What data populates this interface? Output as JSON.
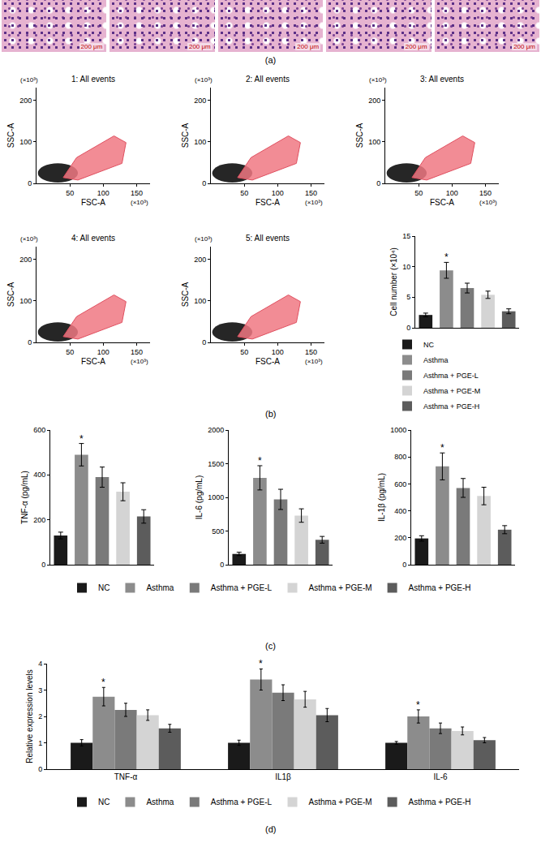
{
  "panel_a": {
    "label": "(a)",
    "scale_bars": [
      "200 μm",
      "200 μm",
      "200 μm",
      "200 μm",
      "200 μm"
    ]
  },
  "chart_data": [
    {
      "type": "scatter",
      "panel": "(b)",
      "title": "1: All events",
      "xlabel": "FSC-A",
      "ylabel": "SSC-A",
      "x_multiplier": "(×10³)",
      "y_multiplier": "(×10³)",
      "xlim": [
        0,
        170
      ],
      "xticks": [
        50,
        100,
        150
      ],
      "ylim": [
        0,
        230
      ],
      "yticks": [
        0,
        100,
        200
      ],
      "grid": false
    },
    {
      "type": "scatter",
      "panel": "(b)",
      "title": "2: All events",
      "xlabel": "FSC-A",
      "ylabel": "SSC-A",
      "x_multiplier": "(×10³)",
      "y_multiplier": "(×10³)",
      "xlim": [
        0,
        170
      ],
      "xticks": [
        50,
        100,
        150
      ],
      "ylim": [
        0,
        230
      ],
      "yticks": [
        0,
        100,
        200
      ],
      "grid": false
    },
    {
      "type": "scatter",
      "panel": "(b)",
      "title": "3: All events",
      "xlabel": "FSC-A",
      "ylabel": "SSC-A",
      "x_multiplier": "(×10³)",
      "y_multiplier": "(×10³)",
      "xlim": [
        0,
        170
      ],
      "xticks": [
        50,
        100,
        150
      ],
      "ylim": [
        0,
        230
      ],
      "yticks": [
        0,
        100,
        200
      ],
      "grid": false
    },
    {
      "type": "scatter",
      "panel": "(b)",
      "title": "4: All events",
      "xlabel": "FSC-A",
      "ylabel": "SSC-A",
      "x_multiplier": "(×10³)",
      "y_multiplier": "(×10³)",
      "xlim": [
        0,
        170
      ],
      "xticks": [
        50,
        100,
        150
      ],
      "ylim": [
        0,
        230
      ],
      "yticks": [
        0,
        100,
        200
      ],
      "grid": false
    },
    {
      "type": "scatter",
      "panel": "(b)",
      "title": "5: All events",
      "xlabel": "FSC-A",
      "ylabel": "SSC-A",
      "x_multiplier": "(×10³)",
      "y_multiplier": "(×10³)",
      "xlim": [
        0,
        170
      ],
      "xticks": [
        50,
        100,
        150
      ],
      "ylim": [
        0,
        230
      ],
      "yticks": [
        0,
        100,
        200
      ],
      "grid": false
    },
    {
      "type": "bar",
      "panel": "(b)",
      "ylabel": "Cell number (×10⁴)",
      "categories": [
        "NC",
        "Asthma",
        "Asthma + PGE-L",
        "Asthma + PGE-M",
        "Asthma + PGE-H"
      ],
      "values": [
        2.1,
        9.4,
        6.5,
        5.4,
        2.7
      ],
      "errors": [
        0.3,
        1.3,
        0.8,
        0.6,
        0.4
      ],
      "colors": [
        "#1a1a1a",
        "#8c8c8c",
        "#7a7a7a",
        "#d4d4d4",
        "#5c5c5c"
      ],
      "significance": [
        null,
        "*",
        null,
        null,
        null
      ],
      "ylim": [
        0,
        15
      ],
      "yticks": [
        0,
        5,
        10,
        15
      ],
      "grid": false,
      "tick_labels": "y",
      "legend": "bottom"
    },
    {
      "type": "bar",
      "panel": "(c)",
      "ylabel": "TNF-α (pg/mL)",
      "categories": [
        "NC",
        "Asthma",
        "Asthma + PGE-L",
        "Asthma + PGE-M",
        "Asthma + PGE-H"
      ],
      "values": [
        130,
        490,
        390,
        325,
        215
      ],
      "errors": [
        15,
        50,
        45,
        40,
        30
      ],
      "colors": [
        "#1a1a1a",
        "#8c8c8c",
        "#7a7a7a",
        "#d4d4d4",
        "#5c5c5c"
      ],
      "significance": [
        null,
        "*",
        null,
        null,
        null
      ],
      "ylim": [
        0,
        600
      ],
      "yticks": [
        0,
        200,
        400,
        600
      ],
      "grid": false,
      "tick_labels": "y",
      "legend": "bottom"
    },
    {
      "type": "bar",
      "panel": "(c)",
      "ylabel": "IL-6 (pg/mL)",
      "categories": [
        "NC",
        "Asthma",
        "Asthma + PGE-L",
        "Asthma + PGE-M",
        "Asthma + PGE-H"
      ],
      "values": [
        160,
        1290,
        970,
        730,
        370
      ],
      "errors": [
        25,
        180,
        150,
        100,
        50
      ],
      "colors": [
        "#1a1a1a",
        "#8c8c8c",
        "#7a7a7a",
        "#d4d4d4",
        "#5c5c5c"
      ],
      "significance": [
        null,
        "*",
        null,
        null,
        null
      ],
      "ylim": [
        0,
        2000
      ],
      "yticks": [
        0,
        500,
        1000,
        1500,
        2000
      ],
      "grid": false,
      "tick_labels": "y"
    },
    {
      "type": "bar",
      "panel": "(c)",
      "ylabel": "IL-1β (pg/mL)",
      "categories": [
        "NC",
        "Asthma",
        "Asthma + PGE-L",
        "Asthma + PGE-M",
        "Asthma + PGE-H"
      ],
      "values": [
        195,
        730,
        570,
        510,
        260
      ],
      "errors": [
        20,
        100,
        70,
        65,
        30
      ],
      "colors": [
        "#1a1a1a",
        "#8c8c8c",
        "#7a7a7a",
        "#d4d4d4",
        "#5c5c5c"
      ],
      "significance": [
        null,
        "*",
        null,
        null,
        null
      ],
      "ylim": [
        0,
        1000
      ],
      "yticks": [
        0,
        200,
        400,
        600,
        800,
        1000
      ],
      "grid": false,
      "tick_labels": "y"
    },
    {
      "type": "grouped_bar",
      "panel": "(d)",
      "ylabel": "Relative expression levels",
      "categories": [
        "TNF-α",
        "IL1β",
        "IL-6"
      ],
      "series": [
        {
          "name": "NC",
          "color": "#1a1a1a",
          "values": [
            1.0,
            1.0,
            1.0
          ],
          "errors": [
            0.12,
            0.1,
            0.05
          ]
        },
        {
          "name": "Asthma",
          "color": "#8c8c8c",
          "values": [
            2.75,
            3.4,
            2.0
          ],
          "errors": [
            0.35,
            0.4,
            0.25
          ],
          "significance": [
            "*",
            "*",
            "*"
          ]
        },
        {
          "name": "Asthma + PGE-L",
          "color": "#7a7a7a",
          "values": [
            2.25,
            2.9,
            1.55
          ],
          "errors": [
            0.25,
            0.3,
            0.2
          ]
        },
        {
          "name": "Asthma + PGE-M",
          "color": "#d4d4d4",
          "values": [
            2.05,
            2.65,
            1.45
          ],
          "errors": [
            0.2,
            0.3,
            0.15
          ]
        },
        {
          "name": "Asthma + PGE-H",
          "color": "#5c5c5c",
          "values": [
            1.55,
            2.05,
            1.1
          ],
          "errors": [
            0.15,
            0.25,
            0.1
          ]
        }
      ],
      "ylim": [
        0,
        4
      ],
      "yticks": [
        0,
        1,
        2,
        3,
        4
      ],
      "grid": false,
      "legend": "bottom"
    }
  ]
}
